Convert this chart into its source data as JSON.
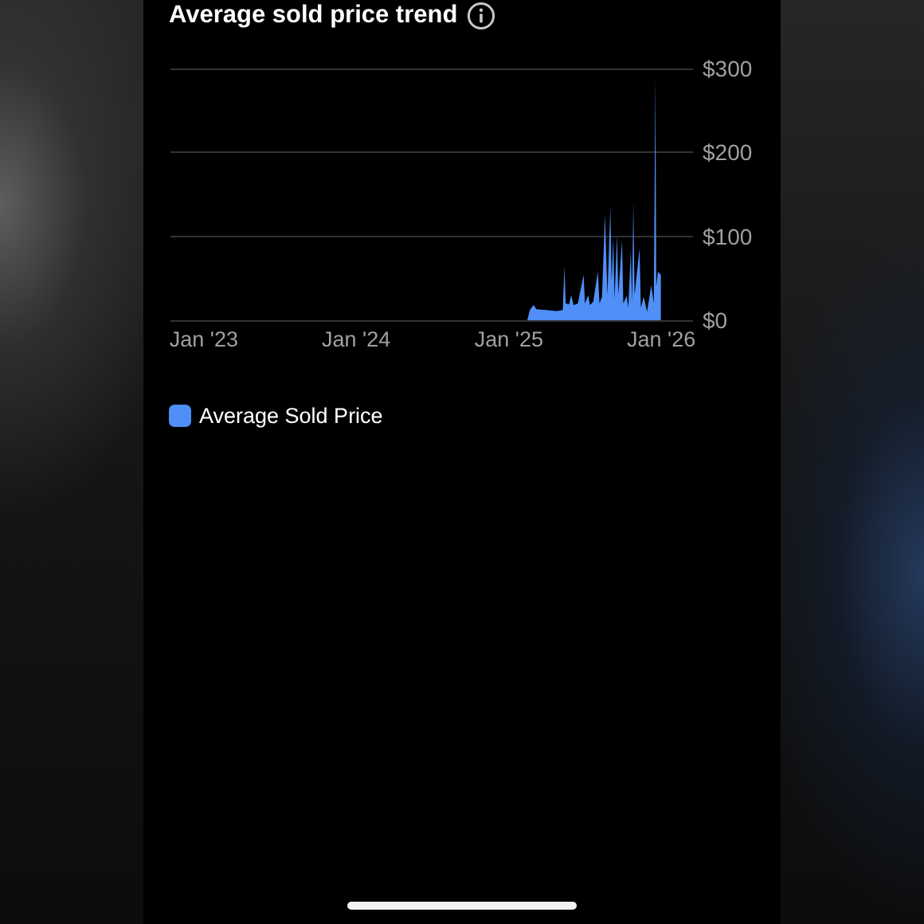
{
  "chart_data": {
    "type": "area",
    "title": "Average sold price trend",
    "x": [
      "2023-01-01",
      "2025-02-14",
      "2025-02-20",
      "2025-03-01",
      "2025-03-08",
      "2025-04-01",
      "2025-04-25",
      "2025-05-10",
      "2025-05-14",
      "2025-05-17",
      "2025-05-25",
      "2025-05-30",
      "2025-06-05",
      "2025-06-15",
      "2025-06-29",
      "2025-07-02",
      "2025-07-10",
      "2025-07-14",
      "2025-07-22",
      "2025-08-02",
      "2025-08-06",
      "2025-08-12",
      "2025-08-19",
      "2025-08-25",
      "2025-09-01",
      "2025-09-04",
      "2025-09-08",
      "2025-09-11",
      "2025-09-17",
      "2025-09-20",
      "2025-09-29",
      "2025-10-02",
      "2025-10-10",
      "2025-10-14",
      "2025-10-20",
      "2025-10-23",
      "2025-10-26",
      "2025-10-29",
      "2025-11-10",
      "2025-11-13",
      "2025-11-20",
      "2025-11-28",
      "2025-12-08",
      "2025-12-14",
      "2025-12-18",
      "2025-12-20",
      "2025-12-24",
      "2025-12-31"
    ],
    "series": [
      {
        "name": "Average Sold Price",
        "color": "#4f8ff7",
        "values": [
          0,
          0,
          12,
          18,
          13,
          12,
          11,
          12,
          64,
          20,
          19,
          30,
          18,
          20,
          54,
          20,
          30,
          18,
          22,
          58,
          20,
          28,
          126,
          30,
          135,
          45,
          98,
          25,
          101,
          30,
          95,
          20,
          29,
          15,
          83,
          20,
          141,
          30,
          86,
          15,
          28,
          10,
          42,
          20,
          289,
          40,
          58,
          54
        ]
      }
    ],
    "xlim": [
      "2022-10-13",
      "2026-03-18"
    ],
    "xticks": [
      {
        "value": "2023-01-01",
        "label": "Jan '23"
      },
      {
        "value": "2024-01-01",
        "label": "Jan '24"
      },
      {
        "value": "2025-01-01",
        "label": "Jan '25"
      },
      {
        "value": "2026-01-01",
        "label": "Jan '26"
      }
    ],
    "ylim": [
      0,
      300
    ],
    "yticks": [
      {
        "value": 0,
        "label": "$0"
      },
      {
        "value": 100,
        "label": "$100"
      },
      {
        "value": 200,
        "label": "$200"
      },
      {
        "value": 300,
        "label": "$300"
      }
    ],
    "grid": "y",
    "legend": "bottom left"
  }
}
